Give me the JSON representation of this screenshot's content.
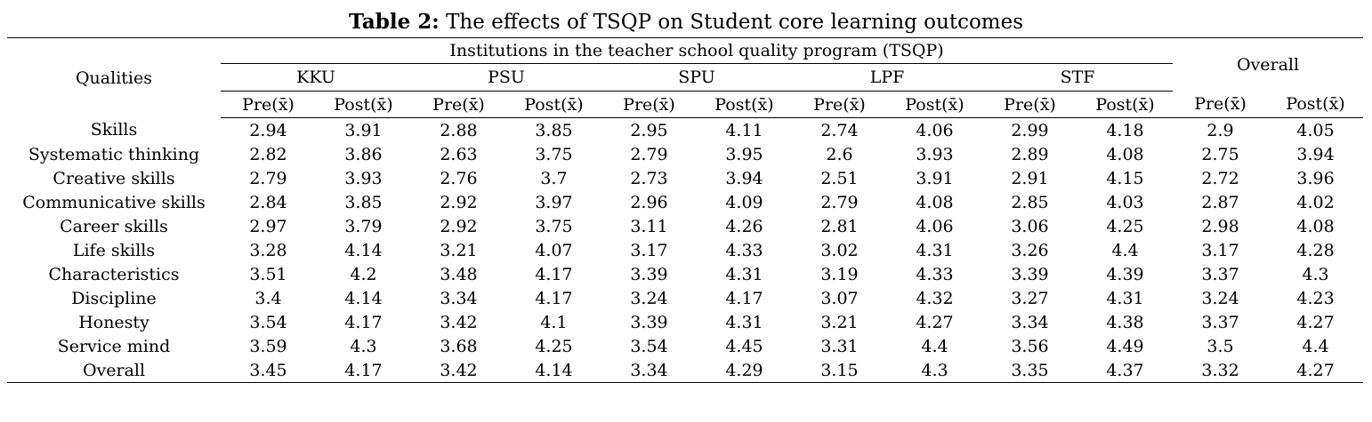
{
  "caption": {
    "label": "Table 2:",
    "text": "The effects of TSQP on Student core learning outcomes"
  },
  "table": {
    "qualities_header": "Qualities",
    "group_header": "Institutions in the teacher school quality program (TSQP)",
    "overall_header": "Overall",
    "institutions": [
      "KKU",
      "PSU",
      "SPU",
      "LPF",
      "STF"
    ],
    "pre_label": "Pre(x̄)",
    "post_label": "Post(x̄)",
    "rows": [
      {
        "quality": "Skills",
        "values": [
          "2.94",
          "3.91",
          "2.88",
          "3.85",
          "2.95",
          "4.11",
          "2.74",
          "4.06",
          "2.99",
          "4.18",
          "2.9",
          "4.05"
        ]
      },
      {
        "quality": "Systematic thinking",
        "values": [
          "2.82",
          "3.86",
          "2.63",
          "3.75",
          "2.79",
          "3.95",
          "2.6",
          "3.93",
          "2.89",
          "4.08",
          "2.75",
          "3.94"
        ]
      },
      {
        "quality": "Creative skills",
        "values": [
          "2.79",
          "3.93",
          "2.76",
          "3.7",
          "2.73",
          "3.94",
          "2.51",
          "3.91",
          "2.91",
          "4.15",
          "2.72",
          "3.96"
        ]
      },
      {
        "quality": "Communicative skills",
        "values": [
          "2.84",
          "3.85",
          "2.92",
          "3.97",
          "2.96",
          "4.09",
          "2.79",
          "4.08",
          "2.85",
          "4.03",
          "2.87",
          "4.02"
        ]
      },
      {
        "quality": "Career skills",
        "values": [
          "2.97",
          "3.79",
          "2.92",
          "3.75",
          "3.11",
          "4.26",
          "2.81",
          "4.06",
          "3.06",
          "4.25",
          "2.98",
          "4.08"
        ]
      },
      {
        "quality": "Life skills",
        "values": [
          "3.28",
          "4.14",
          "3.21",
          "4.07",
          "3.17",
          "4.33",
          "3.02",
          "4.31",
          "3.26",
          "4.4",
          "3.17",
          "4.28"
        ]
      },
      {
        "quality": "Characteristics",
        "values": [
          "3.51",
          "4.2",
          "3.48",
          "4.17",
          "3.39",
          "4.31",
          "3.19",
          "4.33",
          "3.39",
          "4.39",
          "3.37",
          "4.3"
        ]
      },
      {
        "quality": "Discipline",
        "values": [
          "3.4",
          "4.14",
          "3.34",
          "4.17",
          "3.24",
          "4.17",
          "3.07",
          "4.32",
          "3.27",
          "4.31",
          "3.24",
          "4.23"
        ]
      },
      {
        "quality": "Honesty",
        "values": [
          "3.54",
          "4.17",
          "3.42",
          "4.1",
          "3.39",
          "4.31",
          "3.21",
          "4.27",
          "3.34",
          "4.38",
          "3.37",
          "4.27"
        ]
      },
      {
        "quality": "Service mind",
        "values": [
          "3.59",
          "4.3",
          "3.68",
          "4.25",
          "3.54",
          "4.45",
          "3.31",
          "4.4",
          "3.56",
          "4.49",
          "3.5",
          "4.4"
        ]
      },
      {
        "quality": "Overall",
        "values": [
          "3.45",
          "4.17",
          "3.42",
          "4.14",
          "3.34",
          "4.29",
          "3.15",
          "4.3",
          "3.35",
          "4.37",
          "3.32",
          "4.27"
        ]
      }
    ]
  }
}
